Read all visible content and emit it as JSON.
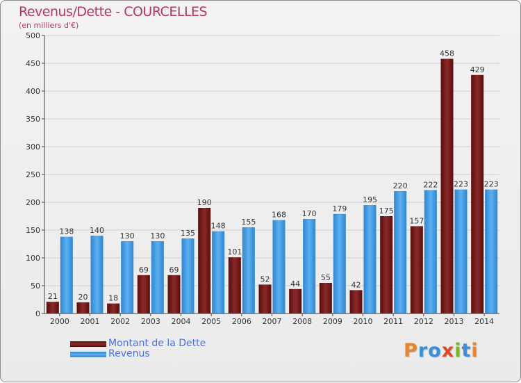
{
  "header": {
    "title": "Revenus/Dette - COURCELLES",
    "subtitle": "(en milliers d'€)"
  },
  "chart_data": {
    "type": "bar",
    "categories": [
      "2000",
      "2001",
      "2002",
      "2003",
      "2004",
      "2005",
      "2006",
      "2007",
      "2008",
      "2009",
      "2010",
      "2011",
      "2012",
      "2013",
      "2014"
    ],
    "series": [
      {
        "name": "Montant de la Dette",
        "color": "#7a1a1a",
        "values": [
          21,
          20,
          18,
          69,
          69,
          190,
          101,
          52,
          44,
          55,
          42,
          175,
          157,
          458,
          429
        ]
      },
      {
        "name": "Revenus",
        "color": "#4aa3e8",
        "values": [
          138,
          140,
          130,
          130,
          135,
          148,
          155,
          168,
          170,
          179,
          195,
          220,
          222,
          223,
          223
        ]
      }
    ],
    "title": "Revenus/Dette - COURCELLES",
    "subtitle": "(en milliers d'€)",
    "ylim": [
      0,
      500
    ],
    "yticks": [
      0,
      50,
      100,
      150,
      200,
      250,
      300,
      350,
      400,
      450,
      500
    ],
    "grid": true,
    "legend": "bottom-left"
  },
  "legend": {
    "items": [
      {
        "label": "Montant de la Dette",
        "color": "#7a1a1a"
      },
      {
        "label": "Revenus",
        "color": "#4aa3e8"
      }
    ]
  },
  "logo": {
    "text": "Proxiti",
    "colors": [
      "#e8852a",
      "#3a8fd6",
      "#3a8fd6",
      "#e04a2a",
      "#7ab82a",
      "#3a8fd6",
      "#e8852a"
    ]
  }
}
